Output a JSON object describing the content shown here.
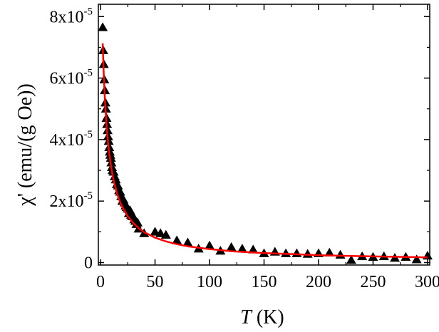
{
  "chart_data": {
    "type": "scatter",
    "xlabel_var": "T",
    "xlabel_unit": " (K)",
    "ylabel": "χ' (emu/(g Oe))",
    "xlim": [
      -2,
      302
    ],
    "ylim": [
      -0.08,
      8.4
    ],
    "y_multiplier_label": "x10",
    "y_exponent": "-5",
    "x_ticks": [
      0,
      50,
      100,
      150,
      200,
      250,
      300
    ],
    "x_tick_labels": [
      "0",
      "50",
      "100",
      "150",
      "200",
      "250",
      "300"
    ],
    "y_ticks": [
      0,
      2,
      4,
      6,
      8
    ],
    "y_tick_labels": [
      "0",
      "2",
      "4",
      "6",
      "8"
    ],
    "series": [
      {
        "name": "data",
        "marker": "triangle",
        "color": "#000000",
        "x": [
          2,
          2.5,
          3,
          3.5,
          4,
          4.5,
          5,
          5.5,
          6,
          6.5,
          7,
          7.5,
          8,
          8.5,
          9,
          9.5,
          10,
          10.5,
          11,
          12,
          13,
          14,
          15,
          16,
          17,
          18,
          19,
          20,
          21,
          22,
          23,
          24,
          25,
          26,
          27,
          28,
          29,
          30,
          31,
          32,
          33,
          34,
          35,
          40,
          50,
          55,
          60,
          70,
          80,
          90,
          100,
          110,
          120,
          130,
          140,
          150,
          160,
          170,
          180,
          190,
          200,
          210,
          220,
          230,
          240,
          250,
          260,
          270,
          280,
          290,
          300
        ],
        "y": [
          7.65,
          6.9,
          6.45,
          5.95,
          5.6,
          5.2,
          5.0,
          4.7,
          4.5,
          4.3,
          4.1,
          3.95,
          3.75,
          3.6,
          3.5,
          3.4,
          3.25,
          3.1,
          3.0,
          2.95,
          2.8,
          2.7,
          2.55,
          2.5,
          2.35,
          2.3,
          2.15,
          2.0,
          2.05,
          1.95,
          1.85,
          1.8,
          1.75,
          1.6,
          1.7,
          1.55,
          1.5,
          1.5,
          1.4,
          1.35,
          1.25,
          1.3,
          1.1,
          0.95,
          1.0,
          0.95,
          0.9,
          0.72,
          0.65,
          0.45,
          0.55,
          0.38,
          0.5,
          0.45,
          0.42,
          0.3,
          0.35,
          0.3,
          0.3,
          0.28,
          0.3,
          0.32,
          0.25,
          0.08,
          0.2,
          0.18,
          0.2,
          0.15,
          0.18,
          0.1,
          0.22
        ]
      },
      {
        "name": "fit",
        "type": "line",
        "color": "#ff0000",
        "x": [
          2,
          3,
          4,
          5,
          6,
          7,
          8,
          10,
          12,
          15,
          18,
          20,
          25,
          30,
          35,
          40,
          50,
          60,
          70,
          80,
          100,
          120,
          150,
          180,
          200,
          250,
          300
        ],
        "y": [
          7.13,
          6.1,
          5.32,
          4.72,
          4.24,
          3.86,
          3.53,
          3.04,
          2.67,
          2.26,
          1.96,
          1.81,
          1.5,
          1.29,
          1.12,
          0.99,
          0.81,
          0.69,
          0.6,
          0.53,
          0.44,
          0.37,
          0.31,
          0.27,
          0.24,
          0.2,
          0.17
        ]
      }
    ]
  }
}
